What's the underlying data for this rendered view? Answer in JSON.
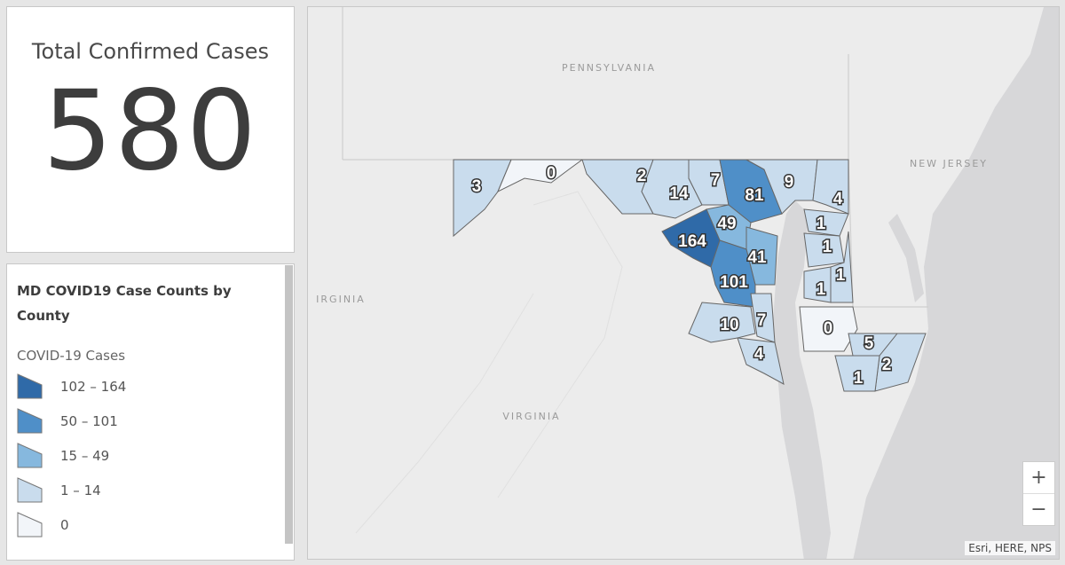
{
  "total_card": {
    "title": "Total Confirmed Cases",
    "value": "580"
  },
  "legend": {
    "title": "MD COVID19 Case Counts by County",
    "layer_title": "COVID-19 Cases",
    "classes": [
      {
        "label": "102 – 164",
        "color": "#2f6aa8"
      },
      {
        "label": "50 – 101",
        "color": "#4f8fc8"
      },
      {
        "label": "15 – 49",
        "color": "#86b8de"
      },
      {
        "label": "1 – 14",
        "color": "#c9dced"
      },
      {
        "label": "0",
        "color": "#f2f5f9"
      }
    ]
  },
  "map": {
    "region_labels": [
      "PENNSYLVANIA",
      "NEW JERSEY",
      "VIRGINIA",
      "IRGINIA"
    ],
    "county_counts": [
      "3",
      "0",
      "2",
      "14",
      "7",
      "81",
      "9",
      "4",
      "49",
      "164",
      "1",
      "1",
      "41",
      "1",
      "101",
      "1",
      "10",
      "7",
      "0",
      "4",
      "5",
      "2",
      "1"
    ],
    "zoom_in": "+",
    "zoom_out": "−",
    "attribution": "Esri, HERE, NPS"
  }
}
